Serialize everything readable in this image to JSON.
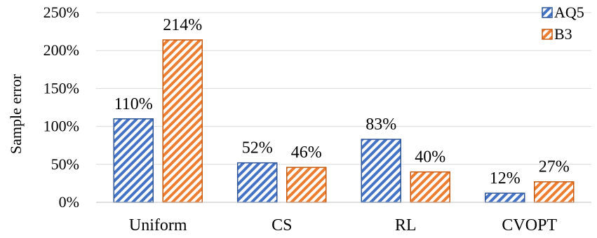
{
  "chart_data": {
    "type": "bar",
    "title": "",
    "xlabel": "",
    "ylabel": "Sample error",
    "ylim": [
      0,
      250
    ],
    "yticks": [
      0,
      50,
      100,
      150,
      200,
      250
    ],
    "ytick_labels": [
      "0%",
      "50%",
      "100%",
      "150%",
      "200%",
      "250%"
    ],
    "categories": [
      "Uniform",
      "CS",
      "RL",
      "CVOPT"
    ],
    "series": [
      {
        "name": "AQ5",
        "values": [
          110,
          52,
          83,
          12
        ],
        "labels": [
          "110%",
          "52%",
          "83%",
          "12%"
        ],
        "color": "#4472C4",
        "pattern": "diagonal-hatch"
      },
      {
        "name": "B3",
        "values": [
          214,
          46,
          40,
          27
        ],
        "labels": [
          "214%",
          "46%",
          "40%",
          "27%"
        ],
        "color": "#ED7D31",
        "pattern": "diagonal-hatch"
      }
    ],
    "grid": "horizontal",
    "legend_position": "top-right"
  }
}
